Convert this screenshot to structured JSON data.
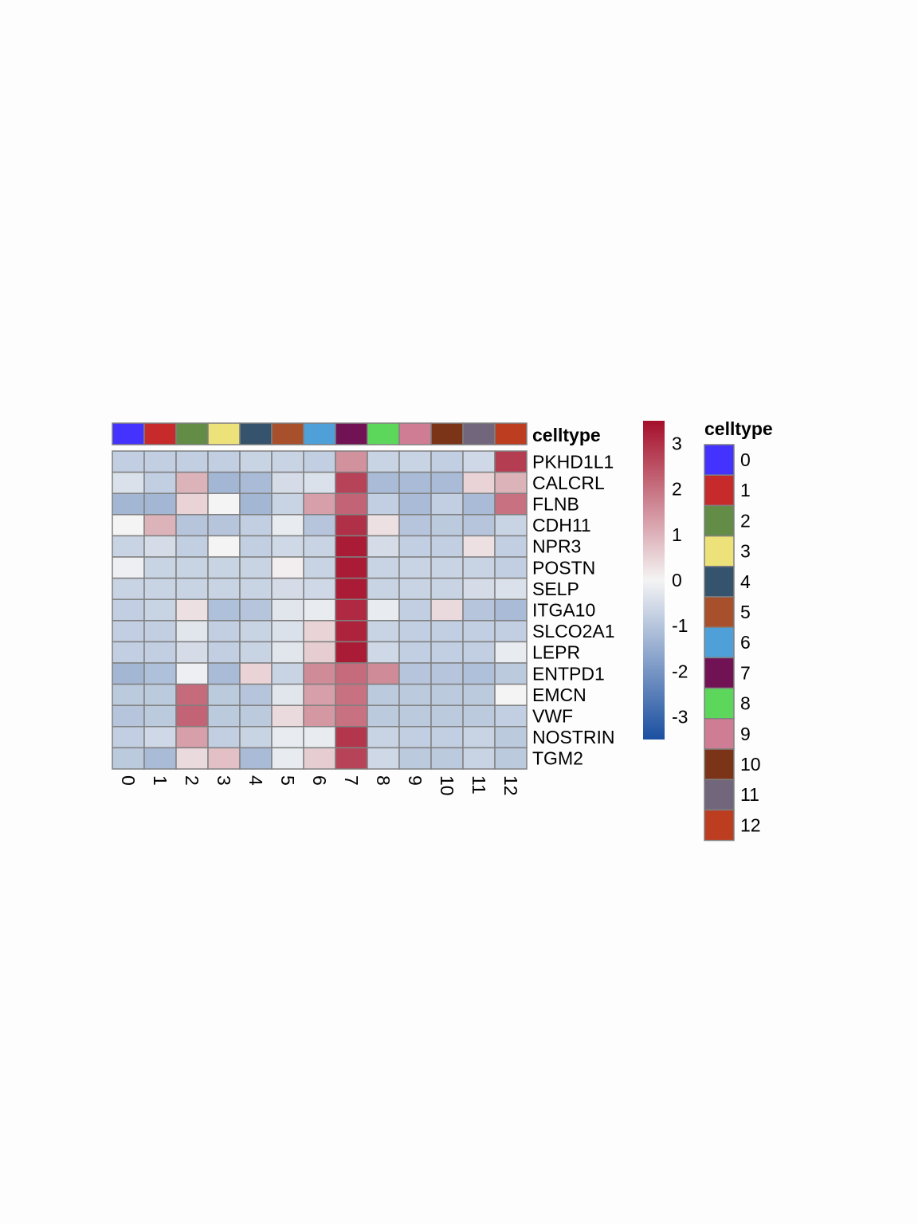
{
  "chart_data": {
    "type": "heatmap",
    "annotation_label": "celltype",
    "legend_title": "celltype",
    "columns": [
      "0",
      "1",
      "2",
      "3",
      "4",
      "5",
      "6",
      "7",
      "8",
      "9",
      "10",
      "11",
      "12"
    ],
    "rows": [
      "PKHD1L1",
      "CALCRL",
      "FLNB",
      "CDH11",
      "NPR3",
      "POSTN",
      "SELP",
      "ITGA10",
      "SLCO2A1",
      "LEPR",
      "ENTPD1",
      "EMCN",
      "VWF",
      "NOSTRIN",
      "TGM2"
    ],
    "values": [
      [
        -0.8,
        -0.8,
        -0.8,
        -0.8,
        -0.7,
        -0.7,
        -0.8,
        1.5,
        -0.7,
        -0.7,
        -0.8,
        -0.6,
        2.8
      ],
      [
        -0.4,
        -0.8,
        1.0,
        -1.3,
        -1.2,
        -0.5,
        -0.4,
        2.7,
        -1.2,
        -1.2,
        -1.2,
        0.5,
        1.0
      ],
      [
        -1.3,
        -1.3,
        0.5,
        0.0,
        -1.3,
        -0.7,
        1.3,
        2.2,
        -0.8,
        -1.2,
        -0.8,
        -1.2,
        2.0
      ],
      [
        0.0,
        1.0,
        -1.0,
        -1.0,
        -0.8,
        -0.2,
        -1.0,
        3.0,
        0.3,
        -1.0,
        -0.9,
        -1.0,
        -0.7
      ],
      [
        -0.7,
        -0.5,
        -0.8,
        0.0,
        -0.8,
        -0.6,
        -0.7,
        3.3,
        -0.5,
        -0.8,
        -0.8,
        0.3,
        -0.8
      ],
      [
        -0.1,
        -0.7,
        -0.7,
        -0.7,
        -0.7,
        0.1,
        -0.7,
        3.3,
        -0.7,
        -0.7,
        -0.7,
        -0.7,
        -0.8
      ],
      [
        -0.7,
        -0.7,
        -0.7,
        -0.7,
        -0.7,
        -0.5,
        -0.6,
        3.3,
        -0.7,
        -0.7,
        -0.7,
        -0.5,
        -0.4
      ],
      [
        -0.8,
        -0.7,
        0.3,
        -1.1,
        -1.0,
        -0.3,
        -0.2,
        3.1,
        -0.2,
        -0.8,
        0.4,
        -1.0,
        -1.2
      ],
      [
        -0.8,
        -0.8,
        -0.3,
        -0.8,
        -0.7,
        -0.4,
        0.5,
        3.2,
        -0.7,
        -0.8,
        -0.8,
        -0.8,
        -0.8
      ],
      [
        -0.8,
        -0.8,
        -0.5,
        -0.8,
        -0.7,
        -0.3,
        0.6,
        3.3,
        -0.6,
        -0.8,
        -0.8,
        -0.8,
        -0.2
      ],
      [
        -1.3,
        -1.1,
        -0.1,
        -1.2,
        0.5,
        -0.7,
        1.6,
        2.1,
        1.6,
        -1.0,
        -1.0,
        -1.1,
        -0.9
      ],
      [
        -0.9,
        -0.9,
        2.1,
        -0.9,
        -1.0,
        -0.3,
        1.3,
        2.0,
        -0.9,
        -0.9,
        -0.9,
        -0.9,
        0.0
      ],
      [
        -1.0,
        -0.9,
        2.2,
        -0.9,
        -0.9,
        0.4,
        1.4,
        2.0,
        -0.9,
        -0.9,
        -0.9,
        -0.9,
        -0.8
      ],
      [
        -0.8,
        -0.6,
        1.3,
        -0.8,
        -0.7,
        -0.2,
        -0.2,
        2.9,
        -0.7,
        -0.8,
        -0.8,
        -0.7,
        -0.9
      ],
      [
        -0.9,
        -1.2,
        0.4,
        0.8,
        -1.2,
        -0.2,
        0.6,
        2.7,
        -0.6,
        -0.9,
        -0.9,
        -0.7,
        -0.9
      ]
    ],
    "scale": {
      "min": -3.5,
      "max": 3.5,
      "ticks": [
        3,
        2,
        1,
        0,
        -1,
        -2,
        -3
      ],
      "tick_labels": [
        "3",
        "2",
        "1",
        "0",
        "-1",
        "-2",
        "-3"
      ],
      "low_color": "#1a4fa0",
      "mid_color": "#f4f4f4",
      "high_color": "#a50f2a"
    },
    "celltype_colors": [
      "#4433ff",
      "#c72a2a",
      "#638c47",
      "#ede27a",
      "#35536d",
      "#a84f2c",
      "#4f9fd8",
      "#701253",
      "#5dd75b",
      "#cf7d94",
      "#7b3418",
      "#72667c",
      "#bd3d20"
    ],
    "grid_color": "#808080"
  }
}
